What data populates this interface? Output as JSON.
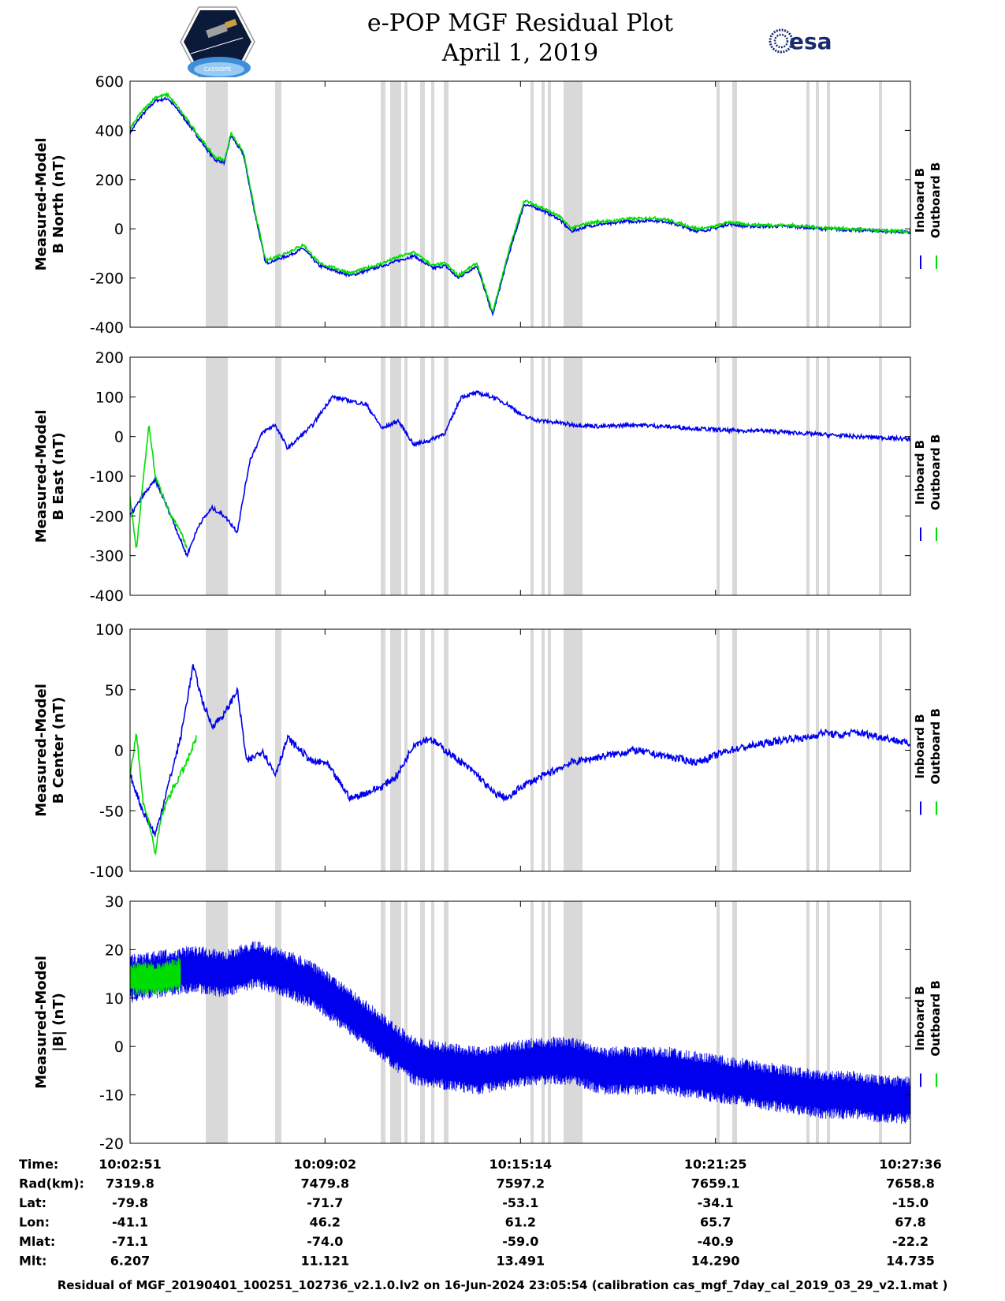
{
  "title": "e-POP MGF Residual Plot",
  "subtitle": "April 1, 2019",
  "logos": {
    "mission": {
      "icon": "cassiope-mission-patch-icon",
      "text": "CASSIOPE"
    },
    "agency": {
      "icon": "esa-logo-icon",
      "text": "esa"
    }
  },
  "colors": {
    "inboard": "#0000ee",
    "outboard": "#00dd00",
    "gap_shading": "#d9d9d9"
  },
  "chart_data": [
    {
      "type": "line",
      "ylabel": [
        "Measured-Model",
        "B North (nT)"
      ],
      "ylim": [
        -400,
        600
      ],
      "yticks": [
        -400,
        -200,
        0,
        200,
        400,
        600
      ],
      "legend": [
        "Inboard B",
        "Outboard B"
      ],
      "legend_position": "right",
      "grid": false,
      "series": [
        {
          "name": "Inboard B",
          "color": "#0000ee",
          "noise": 6,
          "x": [
            0,
            0.3,
            0.8,
            1.2,
            1.6,
            2.0,
            2.4,
            2.7,
            3.0,
            3.2,
            3.6,
            3.9,
            4.3,
            5.0,
            5.5,
            6.0,
            7.0,
            7.5,
            8.0,
            8.5,
            9.0,
            9.6,
            10.0,
            10.4,
            11.0,
            11.5,
            12.0,
            12.5,
            13.0,
            13.6,
            14.0,
            14.5,
            15.0,
            15.3,
            15.6,
            16.0,
            16.5,
            17.0,
            18.0,
            18.5,
            19.0,
            19.5,
            20.0,
            21.0,
            22.0,
            23.0,
            24.0,
            24.75
          ],
          "y": [
            390,
            450,
            520,
            530,
            470,
            400,
            330,
            280,
            270,
            380,
            300,
            100,
            -140,
            -110,
            -80,
            -150,
            -190,
            -170,
            -150,
            -130,
            -110,
            -160,
            -150,
            -200,
            -150,
            -350,
            -110,
            100,
            80,
            40,
            -10,
            10,
            20,
            20,
            30,
            30,
            35,
            30,
            -10,
            0,
            20,
            10,
            10,
            10,
            0,
            -5,
            -10,
            -15
          ]
        },
        {
          "name": "Outboard B",
          "color": "#00dd00",
          "noise": 6,
          "x": [
            0,
            0.3,
            0.8,
            1.2,
            1.6,
            2.0,
            2.4,
            2.7,
            3.0,
            3.2,
            3.6,
            3.9,
            4.3,
            5.0,
            5.5,
            6.0,
            7.0,
            7.5,
            8.0,
            8.5,
            9.0,
            9.6,
            10.0,
            10.4,
            11.0,
            11.5,
            12.0,
            12.5,
            13.0,
            13.6,
            14.0,
            14.5,
            15.0,
            15.3,
            15.6,
            16.0,
            16.5,
            17.0,
            18.0,
            18.5,
            19.0,
            19.5,
            20.0,
            21.0,
            22.0,
            23.0,
            24.0,
            24.75
          ],
          "y": [
            405,
            465,
            535,
            545,
            480,
            410,
            340,
            290,
            280,
            390,
            310,
            110,
            -130,
            -95,
            -65,
            -140,
            -180,
            -160,
            -140,
            -115,
            -95,
            -150,
            -140,
            -190,
            -140,
            -340,
            -95,
            115,
            90,
            52,
            2,
            22,
            32,
            30,
            40,
            40,
            45,
            38,
            0,
            8,
            28,
            18,
            16,
            14,
            4,
            -2,
            -8,
            -12
          ]
        }
      ]
    },
    {
      "type": "line",
      "ylabel": [
        "Measured-Model",
        "B East (nT)"
      ],
      "ylim": [
        -400,
        200
      ],
      "yticks": [
        -400,
        -300,
        -200,
        -100,
        0,
        100,
        200
      ],
      "legend": [
        "Inboard B",
        "Outboard B"
      ],
      "legend_position": "right",
      "grid": false,
      "series": [
        {
          "name": "Inboard B",
          "color": "#0000ee",
          "noise": 5,
          "x": [
            0,
            0.4,
            0.8,
            1.3,
            1.8,
            2.2,
            2.6,
            3.0,
            3.4,
            3.8,
            4.2,
            4.6,
            5.0,
            5.4,
            5.8,
            6.4,
            7.0,
            7.5,
            8.0,
            8.5,
            9.0,
            9.5,
            10.0,
            10.5,
            11.0,
            11.5,
            12.0,
            12.5,
            13.0,
            13.6,
            14.0,
            15.0,
            16.0,
            17.0,
            18.0,
            19.0,
            20.0,
            21.0,
            22.0,
            23.0,
            24.0,
            24.75
          ],
          "y": [
            -200,
            -150,
            -110,
            -200,
            -300,
            -220,
            -180,
            -200,
            -240,
            -60,
            10,
            30,
            -30,
            0,
            30,
            100,
            90,
            80,
            20,
            40,
            -20,
            -10,
            10,
            100,
            110,
            100,
            80,
            50,
            40,
            35,
            30,
            25,
            30,
            25,
            20,
            15,
            15,
            10,
            5,
            0,
            -3,
            -7
          ]
        },
        {
          "name": "Outboard B",
          "color": "#00dd00",
          "noise": 5,
          "x": [
            0,
            0.2,
            0.4,
            0.6,
            0.8,
            1.1,
            1.3,
            1.6,
            1.8
          ],
          "y": [
            -150,
            -290,
            -120,
            30,
            -100,
            -160,
            -200,
            -240,
            -280
          ]
        }
      ]
    },
    {
      "type": "line",
      "ylabel": [
        "Measured-Model",
        "B Center (nT)"
      ],
      "ylim": [
        -100,
        100
      ],
      "yticks": [
        -100,
        -50,
        0,
        50,
        100
      ],
      "legend": [
        "Inboard B",
        "Outboard B"
      ],
      "legend_position": "right",
      "grid": false,
      "series": [
        {
          "name": "Inboard B",
          "color": "#0000ee",
          "noise": 3,
          "x": [
            0,
            0.4,
            0.8,
            1.2,
            1.6,
            2.0,
            2.3,
            2.6,
            3.0,
            3.4,
            3.7,
            4.2,
            4.6,
            5.0,
            5.4,
            5.8,
            6.2,
            6.6,
            7.0,
            7.5,
            8.0,
            8.5,
            9.0,
            9.5,
            10.0,
            10.5,
            11.0,
            11.5,
            12.0,
            12.4,
            12.8,
            13.2,
            14.0,
            15.0,
            16.0,
            17.0,
            18.0,
            19.0,
            20.0,
            21.0,
            21.5,
            22.0,
            22.5,
            23.0,
            24.0,
            24.75
          ],
          "y": [
            -20,
            -50,
            -70,
            -30,
            10,
            70,
            40,
            20,
            30,
            50,
            -10,
            0,
            -20,
            10,
            0,
            -10,
            -10,
            -25,
            -40,
            -35,
            -30,
            -20,
            5,
            10,
            0,
            -10,
            -20,
            -35,
            -40,
            -30,
            -25,
            -20,
            -10,
            -5,
            0,
            -5,
            -10,
            0,
            5,
            10,
            10,
            15,
            12,
            15,
            10,
            5
          ]
        },
        {
          "name": "Outboard B",
          "color": "#00dd00",
          "noise": 3,
          "x": [
            0,
            0.2,
            0.4,
            0.6,
            0.8,
            1.0,
            1.2,
            1.5,
            1.8,
            2.1
          ],
          "y": [
            -20,
            15,
            -40,
            -60,
            -85,
            -55,
            -40,
            -25,
            -10,
            10
          ]
        }
      ]
    },
    {
      "type": "line",
      "ylabel": [
        "Measured-Model",
        "|B| (nT)"
      ],
      "ylim": [
        -20,
        30
      ],
      "yticks": [
        -20,
        -10,
        0,
        10,
        20,
        30
      ],
      "legend": [
        "Inboard B",
        "Outboard B"
      ],
      "legend_position": "right",
      "grid": false,
      "series": [
        {
          "name": "Inboard B",
          "color": "#0000ee",
          "amp": 5,
          "x": [
            0,
            1,
            2,
            3,
            4,
            5,
            6,
            7,
            8,
            9,
            10,
            11,
            12,
            13,
            14,
            15,
            16,
            17,
            18,
            19,
            20,
            21,
            22,
            23,
            24,
            24.75
          ],
          "y": [
            14,
            15,
            16,
            15,
            17,
            15,
            12,
            7,
            2,
            -3,
            -4,
            -5,
            -4,
            -3,
            -3,
            -5,
            -5,
            -5,
            -6,
            -7,
            -8,
            -9,
            -10,
            -10,
            -11,
            -11
          ]
        },
        {
          "name": "Outboard B",
          "color": "#00dd00",
          "amp": 3.5,
          "x": [
            0,
            0.5,
            1.0,
            1.6
          ],
          "y": [
            14,
            14,
            14,
            15
          ]
        }
      ]
    }
  ],
  "x_axis": {
    "start_min": 0,
    "end_min": 24.75,
    "tick_min": [
      0,
      6.183,
      12.383,
      18.567,
      24.75
    ],
    "gray_bands_min": [
      [
        2.4,
        3.1
      ],
      [
        4.6,
        4.8
      ],
      [
        7.95,
        8.1
      ],
      [
        8.25,
        8.6
      ],
      [
        8.7,
        8.8
      ],
      [
        9.2,
        9.35
      ],
      [
        9.55,
        9.65
      ],
      [
        9.95,
        10.1
      ],
      [
        12.7,
        12.8
      ],
      [
        13.05,
        13.15
      ],
      [
        13.25,
        13.35
      ],
      [
        13.75,
        14.35
      ],
      [
        18.6,
        18.7
      ],
      [
        19.1,
        19.25
      ],
      [
        21.45,
        21.55
      ],
      [
        21.75,
        21.85
      ],
      [
        22.1,
        22.2
      ],
      [
        23.75,
        23.85
      ]
    ]
  },
  "ephemeris": [
    {
      "label": "Time:",
      "values": [
        "10:02:51",
        "10:09:02",
        "10:15:14",
        "10:21:25",
        "10:27:36"
      ]
    },
    {
      "label": "Rad(km):",
      "values": [
        "7319.8",
        "7479.8",
        "7597.2",
        "7659.1",
        "7658.8"
      ]
    },
    {
      "label": "Lat:",
      "values": [
        "-79.8",
        "-71.7",
        "-53.1",
        "-34.1",
        "-15.0"
      ]
    },
    {
      "label": "Lon:",
      "values": [
        "-41.1",
        "46.2",
        "61.2",
        "65.7",
        "67.8"
      ]
    },
    {
      "label": "Mlat:",
      "values": [
        "-71.1",
        "-74.0",
        "-59.0",
        "-40.9",
        "-22.2"
      ]
    },
    {
      "label": "Mlt:",
      "values": [
        "6.207",
        "11.121",
        "13.491",
        "14.290",
        "14.735"
      ]
    }
  ],
  "footer": "Residual of MGF_20190401_100251_102736_v2.1.0.lv2 on 16-Jun-2024 23:05:54 (calibration cas_mgf_7day_cal_2019_03_29_v2.1.mat )"
}
